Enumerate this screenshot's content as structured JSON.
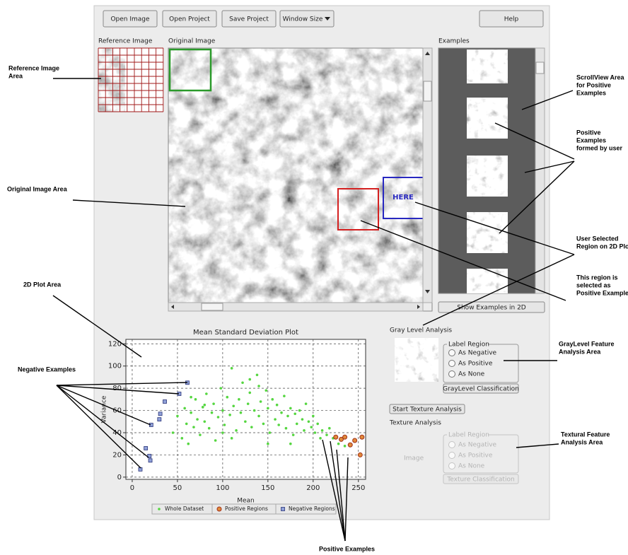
{
  "toolbar": {
    "buttons": [
      "Open Image",
      "Open Project",
      "Save Project",
      "Window Size",
      "Help"
    ]
  },
  "panels": {
    "reference_image": "Reference Image",
    "original_image": "Original Image",
    "examples": "Examples",
    "overlay_label": "HERE",
    "show_examples_button": "Show Examples in 2D"
  },
  "gray_level": {
    "title": "Gray Level Analysis",
    "group": "Label Region",
    "options": [
      "As Negative",
      "As Positive",
      "As None"
    ],
    "button": "GrayLevel Classification"
  },
  "texture": {
    "start_button": "Start Texture Analysis",
    "title": "Texture Analysis",
    "image_label": "Image",
    "group": "Label Region",
    "options": [
      "As Negative",
      "As Positive",
      "As None"
    ],
    "button": "Texture Classification"
  },
  "annotations": [
    {
      "lines": [
        "Reference Image",
        "Area"
      ]
    },
    {
      "lines": [
        "Original Image Area"
      ]
    },
    {
      "lines": [
        "2D Plot Area"
      ]
    },
    {
      "lines": [
        "Negative Examples"
      ]
    },
    {
      "lines": [
        "Positive Examples"
      ]
    },
    {
      "lines": [
        "ScrollView Area",
        "for Positive",
        "Examples"
      ]
    },
    {
      "lines": [
        "Positive",
        "Examples",
        "formed by user"
      ]
    },
    {
      "lines": [
        "User Selected",
        "Region on 2D Plot"
      ]
    },
    {
      "lines": [
        "This region is",
        "selected as",
        "Positive Example"
      ]
    },
    {
      "lines": [
        "GrayLevel Feature",
        "Analysis Area"
      ]
    },
    {
      "lines": [
        "Textural Feature",
        "Analysis Area"
      ]
    }
  ],
  "chart_data": {
    "type": "scatter",
    "title": "Mean Standard Deviation Plot",
    "x_label": "Mean",
    "y_label": "Variance",
    "xlim": [
      -7,
      258
    ],
    "ylim": [
      -2,
      124
    ],
    "xticks": [
      0,
      50,
      100,
      150,
      200,
      250
    ],
    "yticks": [
      0,
      20,
      40,
      60,
      80,
      100,
      120
    ],
    "grid": true,
    "legend": "bottom",
    "series": [
      {
        "name": "Whole Dataset",
        "color": "#55d640",
        "x": [
          45,
          50,
          55,
          58,
          60,
          62,
          65,
          68,
          70,
          72,
          75,
          78,
          80,
          82,
          85,
          88,
          90,
          92,
          95,
          98,
          100,
          102,
          105,
          108,
          110,
          112,
          115,
          118,
          120,
          122,
          125,
          128,
          130,
          132,
          135,
          138,
          140,
          142,
          145,
          148,
          150,
          152,
          155,
          158,
          160,
          162,
          165,
          168,
          170,
          172,
          175,
          178,
          180,
          182,
          185,
          188,
          190,
          192,
          195,
          198,
          200,
          202,
          205,
          208,
          210,
          215,
          218,
          222,
          228,
          235,
          100,
          130,
          110,
          150,
          80,
          65,
          175,
          140
        ],
        "values": [
          40,
          55,
          35,
          62,
          48,
          30,
          58,
          45,
          70,
          52,
          38,
          63,
          50,
          75,
          44,
          58,
          66,
          33,
          54,
          80,
          60,
          47,
          72,
          56,
          98,
          64,
          42,
          70,
          58,
          85,
          50,
          66,
          76,
          45,
          60,
          92,
          55,
          68,
          48,
          78,
          62,
          40,
          70,
          52,
          65,
          47,
          58,
          73,
          44,
          55,
          62,
          38,
          57,
          48,
          60,
          52,
          42,
          66,
          50,
          45,
          55,
          40,
          48,
          35,
          42,
          38,
          44,
          35,
          30,
          28,
          40,
          88,
          35,
          30,
          65,
          72,
          30,
          82
        ]
      },
      {
        "name": "Positive Regions",
        "color": "#e08a3a",
        "x": [
          225,
          231,
          235,
          241,
          246,
          252,
          254
        ],
        "values": [
          36,
          34,
          36,
          29,
          33,
          20,
          36
        ]
      },
      {
        "name": "Negative Regions",
        "color": "#8fa0d8",
        "x": [
          9,
          20,
          15,
          19,
          21,
          30,
          31,
          36,
          52,
          61
        ],
        "values": [
          7,
          15,
          26,
          19,
          47,
          52,
          57,
          68,
          75,
          85
        ]
      }
    ]
  }
}
